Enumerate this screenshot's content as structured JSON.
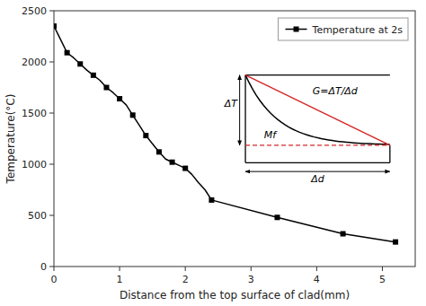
{
  "chart_data": {
    "type": "line",
    "xlabel": "Distance from the top surface of clad(mm)",
    "ylabel": "Temperature(°C)",
    "series": [
      {
        "name": "Temperature at 2s",
        "type": "line",
        "color": "black",
        "x": [
          0,
          0.1,
          0.2,
          0.3,
          0.4,
          0.5,
          0.6,
          0.7,
          0.8,
          0.9,
          1.0,
          1.1,
          1.2,
          1.3,
          1.4,
          1.5,
          1.6,
          1.7,
          1.8,
          1.9,
          2.0,
          2.1,
          2.2,
          2.3,
          2.4,
          3.4,
          4.4,
          5.2
        ],
        "values": [
          2350,
          2220,
          2090,
          2040,
          1980,
          1920,
          1870,
          1820,
          1750,
          1700,
          1640,
          1580,
          1480,
          1380,
          1280,
          1200,
          1120,
          1050,
          1020,
          990,
          960,
          900,
          820,
          750,
          650,
          480,
          320,
          240
        ]
      },
      {
        "type": "scatter",
        "marker": "square",
        "color": "black",
        "x": [
          0,
          0.2,
          0.4,
          0.6,
          0.8,
          1.0,
          1.2,
          1.4,
          1.6,
          1.8,
          2.0,
          2.4,
          3.4,
          4.4,
          5.2
        ],
        "values": [
          2350,
          2090,
          1980,
          1870,
          1750,
          1640,
          1480,
          1280,
          1120,
          1020,
          960,
          650,
          480,
          320,
          240
        ]
      }
    ],
    "xlim": [
      0,
      5.5
    ],
    "ylim": [
      0,
      2500
    ],
    "xticks": [
      0,
      1,
      2,
      3,
      4,
      5
    ],
    "yticks": [
      0,
      500,
      1000,
      1500,
      2000,
      2500
    ],
    "grid": false,
    "legend": "upper right",
    "annotations": [
      "ΔT",
      "Δd",
      "Mf",
      "G=ΔT/Δd"
    ]
  }
}
